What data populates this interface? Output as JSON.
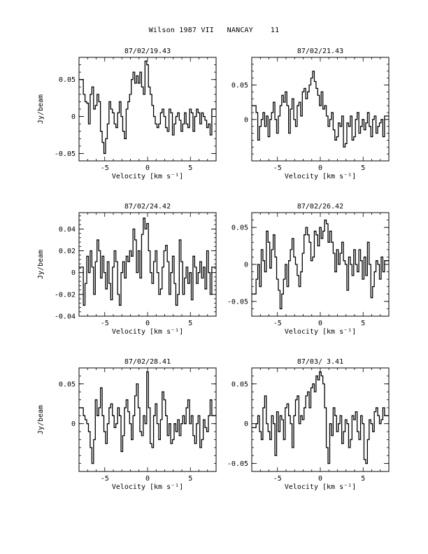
{
  "page": {
    "title": "Wilson 1987 VII   NANCAY    11"
  },
  "chart_data": [
    {
      "type": "line",
      "title": "87/02/19.43",
      "xlabel": "Velocity [km s⁻¹]",
      "ylabel": "Jy/beam",
      "xlim": [
        -8,
        8
      ],
      "ylim": [
        -0.06,
        0.08
      ],
      "x_ticks": [
        "-5",
        "0",
        "5"
      ],
      "y_ticks": [
        "-0.05",
        "0",
        "0.05"
      ],
      "y_tick_values": [
        -0.05,
        0,
        0.05
      ],
      "series": [
        {
          "x": [
            -7.6,
            -7.4,
            -7.2,
            -7.0,
            -6.8,
            -6.6,
            -6.4,
            -6.2,
            -6.0,
            -5.8,
            -5.6,
            -5.4,
            -5.2,
            -5.0,
            -4.8,
            -4.6,
            -4.4,
            -4.2,
            -4.0,
            -3.8,
            -3.6,
            -3.4,
            -3.2,
            -3.0,
            -2.8,
            -2.6,
            -2.4,
            -2.2,
            -2.0,
            -1.8,
            -1.6,
            -1.4,
            -1.2,
            -1.0,
            -0.8,
            -0.6,
            -0.4,
            -0.2,
            0.0,
            0.2,
            0.4,
            0.6,
            0.8,
            1.0,
            1.2,
            1.4,
            1.6,
            1.8,
            2.0,
            2.2,
            2.4,
            2.6,
            2.8,
            3.0,
            3.2,
            3.4,
            3.6,
            3.8,
            4.0,
            4.2,
            4.4,
            4.6,
            4.8,
            5.0,
            5.2,
            5.4,
            5.6,
            5.8,
            6.0,
            6.2,
            6.4,
            6.6,
            6.8,
            7.0,
            7.2,
            7.4,
            7.6
          ],
          "y": [
            0.05,
            0.03,
            0.02,
            0.018,
            -0.01,
            0.03,
            0.04,
            0.01,
            0.015,
            0.03,
            0.02,
            -0.02,
            -0.035,
            -0.05,
            -0.03,
            -0.01,
            0.02,
            0.01,
            0.005,
            -0.01,
            -0.015,
            0.005,
            0.02,
            0.0,
            -0.02,
            -0.03,
            0.01,
            0.02,
            0.03,
            0.05,
            0.06,
            0.045,
            0.055,
            0.045,
            0.06,
            0.04,
            0.03,
            0.075,
            0.07,
            0.04,
            0.03,
            0.015,
            0.0,
            -0.01,
            -0.015,
            -0.01,
            0.005,
            0.01,
            0.0,
            -0.015,
            -0.02,
            0.01,
            0.005,
            -0.025,
            -0.01,
            0.0,
            0.005,
            -0.005,
            -0.02,
            -0.01,
            0.005,
            -0.01,
            -0.015,
            0.01,
            0.005,
            -0.02,
            0.0,
            0.01,
            0.005,
            -0.01,
            0.005,
            0.0,
            -0.005,
            -0.015,
            -0.01,
            -0.025,
            0.01
          ]
        }
      ]
    },
    {
      "type": "line",
      "title": "87/02/21.43",
      "xlabel": "Velocity [km s⁻¹]",
      "ylabel": "",
      "xlim": [
        -8,
        8
      ],
      "ylim": [
        -0.06,
        0.09
      ],
      "x_ticks": [
        "-5",
        "0",
        "5"
      ],
      "y_ticks": [
        "0",
        "0.05"
      ],
      "y_tick_values": [
        0,
        0.05
      ],
      "series": [
        {
          "x": [
            -7.6,
            -7.4,
            -7.2,
            -7.0,
            -6.8,
            -6.6,
            -6.4,
            -6.2,
            -6.0,
            -5.8,
            -5.6,
            -5.4,
            -5.2,
            -5.0,
            -4.8,
            -4.6,
            -4.4,
            -4.2,
            -4.0,
            -3.8,
            -3.6,
            -3.4,
            -3.2,
            -3.0,
            -2.8,
            -2.6,
            -2.4,
            -2.2,
            -2.0,
            -1.8,
            -1.6,
            -1.4,
            -1.2,
            -1.0,
            -0.8,
            -0.6,
            -0.4,
            -0.2,
            0.0,
            0.2,
            0.4,
            0.6,
            0.8,
            1.0,
            1.2,
            1.4,
            1.6,
            1.8,
            2.0,
            2.2,
            2.4,
            2.6,
            2.8,
            3.0,
            3.2,
            3.4,
            3.6,
            3.8,
            4.0,
            4.2,
            4.4,
            4.6,
            4.8,
            5.0,
            5.2,
            5.4,
            5.6,
            5.8,
            6.0,
            6.2,
            6.4,
            6.6,
            6.8,
            7.0,
            7.2,
            7.4,
            7.6
          ],
          "y": [
            0.02,
            0.01,
            -0.03,
            -0.01,
            0.0,
            0.01,
            -0.01,
            0.005,
            -0.025,
            0.0,
            0.01,
            0.025,
            0.0,
            -0.02,
            0.005,
            0.02,
            0.035,
            0.025,
            0.04,
            0.02,
            -0.02,
            0.015,
            0.03,
            0.0,
            -0.01,
            0.02,
            0.025,
            0.005,
            0.04,
            0.045,
            0.03,
            0.04,
            0.05,
            0.06,
            0.07,
            0.055,
            0.045,
            0.035,
            0.02,
            0.04,
            0.015,
            0.02,
            0.005,
            -0.01,
            0.0,
            0.01,
            -0.015,
            -0.03,
            -0.025,
            -0.005,
            -0.01,
            0.005,
            -0.04,
            -0.035,
            -0.005,
            -0.01,
            0.005,
            -0.03,
            -0.025,
            0.0,
            0.01,
            -0.02,
            -0.01,
            0.0,
            -0.015,
            -0.005,
            0.01,
            -0.01,
            -0.025,
            0.0,
            0.005,
            -0.02,
            -0.01,
            -0.005,
            0.0,
            -0.025,
            0.005
          ]
        }
      ]
    },
    {
      "type": "line",
      "title": "87/02/24.42",
      "xlabel": "Velocity [km s⁻¹]",
      "ylabel": "Jy/beam",
      "xlim": [
        -8,
        8
      ],
      "ylim": [
        -0.04,
        0.055
      ],
      "x_ticks": [
        "-5",
        "0",
        "5"
      ],
      "y_ticks": [
        "-0.04",
        "-0.02",
        "0",
        "0.02",
        "0.04"
      ],
      "y_tick_values": [
        -0.04,
        -0.02,
        0,
        0.02,
        0.04
      ],
      "series": [
        {
          "x": [
            -7.6,
            -7.4,
            -7.2,
            -7.0,
            -6.8,
            -6.6,
            -6.4,
            -6.2,
            -6.0,
            -5.8,
            -5.6,
            -5.4,
            -5.2,
            -5.0,
            -4.8,
            -4.6,
            -4.4,
            -4.2,
            -4.0,
            -3.8,
            -3.6,
            -3.4,
            -3.2,
            -3.0,
            -2.8,
            -2.6,
            -2.4,
            -2.2,
            -2.0,
            -1.8,
            -1.6,
            -1.4,
            -1.2,
            -1.0,
            -0.8,
            -0.6,
            -0.4,
            -0.2,
            0.0,
            0.2,
            0.4,
            0.6,
            0.8,
            1.0,
            1.2,
            1.4,
            1.6,
            1.8,
            2.0,
            2.2,
            2.4,
            2.6,
            2.8,
            3.0,
            3.2,
            3.4,
            3.6,
            3.8,
            4.0,
            4.2,
            4.4,
            4.6,
            4.8,
            5.0,
            5.2,
            5.4,
            5.6,
            5.8,
            6.0,
            6.2,
            6.4,
            6.6,
            6.8,
            7.0,
            7.2,
            7.4,
            7.6
          ],
          "y": [
            0.005,
            -0.03,
            -0.01,
            0.015,
            0.0,
            0.02,
            0.005,
            -0.02,
            0.01,
            0.03,
            0.02,
            -0.005,
            0.015,
            0.0,
            -0.015,
            0.01,
            -0.01,
            -0.025,
            0.005,
            0.02,
            0.01,
            -0.02,
            -0.03,
            0.0,
            0.01,
            -0.005,
            0.015,
            0.01,
            0.02,
            0.015,
            0.04,
            0.03,
            0.0,
            0.02,
            -0.005,
            0.035,
            0.05,
            0.04,
            0.045,
            0.02,
            0.0,
            -0.01,
            0.01,
            0.02,
            0.0,
            -0.02,
            -0.015,
            0.005,
            0.02,
            0.025,
            0.01,
            -0.02,
            0.0,
            0.015,
            -0.01,
            -0.03,
            -0.02,
            0.03,
            0.01,
            -0.02,
            -0.005,
            0.005,
            -0.01,
            0.0,
            -0.025,
            0.015,
            0.005,
            -0.01,
            0.0,
            0.01,
            -0.005,
            0.005,
            -0.015,
            0.02,
            0.0,
            -0.02,
            0.005
          ]
        }
      ]
    },
    {
      "type": "line",
      "title": "87/02/26.42",
      "xlabel": "Velocity [km s⁻¹]",
      "ylabel": "",
      "xlim": [
        -8,
        8
      ],
      "ylim": [
        -0.07,
        0.07
      ],
      "x_ticks": [
        "-5",
        "0",
        "5"
      ],
      "y_ticks": [
        "-0.05",
        "0",
        "0.05"
      ],
      "y_tick_values": [
        -0.05,
        0,
        0.05
      ],
      "series": [
        {
          "x": [
            -7.6,
            -7.4,
            -7.2,
            -7.0,
            -6.8,
            -6.6,
            -6.4,
            -6.2,
            -6.0,
            -5.8,
            -5.6,
            -5.4,
            -5.2,
            -5.0,
            -4.8,
            -4.6,
            -4.4,
            -4.2,
            -4.0,
            -3.8,
            -3.6,
            -3.4,
            -3.2,
            -3.0,
            -2.8,
            -2.6,
            -2.4,
            -2.2,
            -2.0,
            -1.8,
            -1.6,
            -1.4,
            -1.2,
            -1.0,
            -0.8,
            -0.6,
            -0.4,
            -0.2,
            0.0,
            0.2,
            0.4,
            0.6,
            0.8,
            1.0,
            1.2,
            1.4,
            1.6,
            1.8,
            2.0,
            2.2,
            2.4,
            2.6,
            2.8,
            3.0,
            3.2,
            3.4,
            3.6,
            3.8,
            4.0,
            4.2,
            4.4,
            4.6,
            4.8,
            5.0,
            5.2,
            5.4,
            5.6,
            5.8,
            6.0,
            6.2,
            6.4,
            6.6,
            6.8,
            7.0,
            7.2,
            7.4,
            7.6
          ],
          "y": [
            -0.04,
            -0.02,
            0.0,
            -0.03,
            0.02,
            0.005,
            -0.01,
            0.045,
            0.03,
            -0.005,
            0.02,
            0.04,
            0.01,
            -0.02,
            -0.035,
            -0.06,
            -0.04,
            -0.02,
            0.0,
            -0.03,
            0.005,
            0.02,
            0.035,
            0.01,
            0.0,
            -0.015,
            -0.03,
            -0.01,
            0.015,
            0.04,
            0.05,
            0.04,
            0.03,
            0.005,
            0.01,
            0.045,
            0.04,
            0.025,
            0.05,
            0.035,
            0.045,
            0.06,
            0.055,
            0.03,
            0.045,
            0.03,
            0.015,
            -0.01,
            0.02,
            0.0,
            0.015,
            0.03,
            0.005,
            0.0,
            -0.035,
            0.01,
            0.0,
            -0.015,
            0.02,
            0.0,
            -0.01,
            0.02,
            0.005,
            -0.02,
            0.01,
            -0.015,
            0.03,
            0.0,
            -0.045,
            -0.03,
            -0.01,
            0.005,
            0.0,
            -0.02,
            0.01,
            -0.01,
            0.005
          ]
        }
      ]
    },
    {
      "type": "line",
      "title": "87/02/28.41",
      "xlabel": "Velocity [km s⁻¹]",
      "ylabel": "Jy/beam",
      "xlim": [
        -8,
        8
      ],
      "ylim": [
        -0.06,
        0.07
      ],
      "x_ticks": [
        "-5",
        "0",
        "5"
      ],
      "y_ticks": [
        "0",
        "0.05"
      ],
      "y_tick_values": [
        0,
        0.05
      ],
      "series": [
        {
          "x": [
            -7.6,
            -7.4,
            -7.2,
            -7.0,
            -6.8,
            -6.6,
            -6.4,
            -6.2,
            -6.0,
            -5.8,
            -5.6,
            -5.4,
            -5.2,
            -5.0,
            -4.8,
            -4.6,
            -4.4,
            -4.2,
            -4.0,
            -3.8,
            -3.6,
            -3.4,
            -3.2,
            -3.0,
            -2.8,
            -2.6,
            -2.4,
            -2.2,
            -2.0,
            -1.8,
            -1.6,
            -1.4,
            -1.2,
            -1.0,
            -0.8,
            -0.6,
            -0.4,
            -0.2,
            0.0,
            0.2,
            0.4,
            0.6,
            0.8,
            1.0,
            1.2,
            1.4,
            1.6,
            1.8,
            2.0,
            2.2,
            2.4,
            2.6,
            2.8,
            3.0,
            3.2,
            3.4,
            3.6,
            3.8,
            4.0,
            4.2,
            4.4,
            4.6,
            4.8,
            5.0,
            5.2,
            5.4,
            5.6,
            5.8,
            6.0,
            6.2,
            6.4,
            6.6,
            6.8,
            7.0,
            7.2,
            7.4,
            7.6
          ],
          "y": [
            0.02,
            0.01,
            0.005,
            0.0,
            -0.01,
            -0.03,
            -0.05,
            -0.02,
            0.03,
            0.01,
            0.02,
            0.045,
            0.01,
            -0.01,
            -0.025,
            0.0,
            0.02,
            0.025,
            0.01,
            -0.005,
            0.0,
            0.02,
            0.01,
            -0.035,
            -0.015,
            0.02,
            0.03,
            0.015,
            0.0,
            -0.02,
            0.01,
            0.035,
            0.05,
            0.02,
            -0.01,
            -0.015,
            0.01,
            0.0,
            0.065,
            0.02,
            -0.025,
            -0.03,
            0.01,
            0.025,
            0.0,
            -0.02,
            0.005,
            0.04,
            0.03,
            0.01,
            -0.015,
            0.0,
            -0.025,
            -0.02,
            0.0,
            -0.01,
            0.005,
            -0.015,
            0.0,
            0.01,
            0.0,
            0.02,
            0.03,
            0.0,
            0.01,
            -0.015,
            -0.025,
            0.0,
            0.01,
            -0.03,
            -0.02,
            0.005,
            -0.005,
            -0.01,
            0.01,
            0.03,
            0.01
          ]
        }
      ]
    },
    {
      "type": "line",
      "title": "87/03/ 3.41",
      "xlabel": "Velocity [km s⁻¹]",
      "ylabel": "",
      "xlim": [
        -8,
        8
      ],
      "ylim": [
        -0.06,
        0.07
      ],
      "x_ticks": [
        "-5",
        "0",
        "5"
      ],
      "y_ticks": [
        "-0.05",
        "0",
        "0.05"
      ],
      "y_tick_values": [
        -0.05,
        0,
        0.05
      ],
      "series": [
        {
          "x": [
            -7.6,
            -7.4,
            -7.2,
            -7.0,
            -6.8,
            -6.6,
            -6.4,
            -6.2,
            -6.0,
            -5.8,
            -5.6,
            -5.4,
            -5.2,
            -5.0,
            -4.8,
            -4.6,
            -4.4,
            -4.2,
            -4.0,
            -3.8,
            -3.6,
            -3.4,
            -3.2,
            -3.0,
            -2.8,
            -2.6,
            -2.4,
            -2.2,
            -2.0,
            -1.8,
            -1.6,
            -1.4,
            -1.2,
            -1.0,
            -0.8,
            -0.6,
            -0.4,
            -0.2,
            0.0,
            0.2,
            0.4,
            0.6,
            0.8,
            1.0,
            1.2,
            1.4,
            1.6,
            1.8,
            2.0,
            2.2,
            2.4,
            2.6,
            2.8,
            3.0,
            3.2,
            3.4,
            3.6,
            3.8,
            4.0,
            4.2,
            4.4,
            4.6,
            4.8,
            5.0,
            5.2,
            5.4,
            5.6,
            5.8,
            6.0,
            6.2,
            6.4,
            6.6,
            6.8,
            7.0,
            7.2,
            7.4,
            7.6
          ],
          "y": [
            -0.005,
            0.0,
            0.01,
            -0.01,
            -0.02,
            0.02,
            0.035,
            0.0,
            -0.01,
            -0.02,
            0.01,
            0.0,
            -0.04,
            0.015,
            -0.01,
            0.01,
            0.005,
            -0.02,
            0.02,
            0.025,
            0.01,
            0.0,
            -0.03,
            0.01,
            0.03,
            0.035,
            0.0,
            0.01,
            0.005,
            0.02,
            0.035,
            0.04,
            0.02,
            0.045,
            0.05,
            0.04,
            0.06,
            0.055,
            0.065,
            0.06,
            0.05,
            0.02,
            -0.03,
            -0.05,
            0.0,
            -0.015,
            0.02,
            0.01,
            -0.01,
            0.0,
            0.01,
            -0.025,
            -0.01,
            0.005,
            0.0,
            -0.03,
            -0.02,
            0.01,
            0.005,
            0.015,
            -0.01,
            -0.02,
            0.01,
            0.0,
            -0.045,
            -0.05,
            -0.02,
            0.005,
            0.0,
            -0.01,
            0.015,
            0.02,
            0.01,
            0.0,
            0.005,
            0.02,
            0.01
          ]
        }
      ]
    }
  ]
}
